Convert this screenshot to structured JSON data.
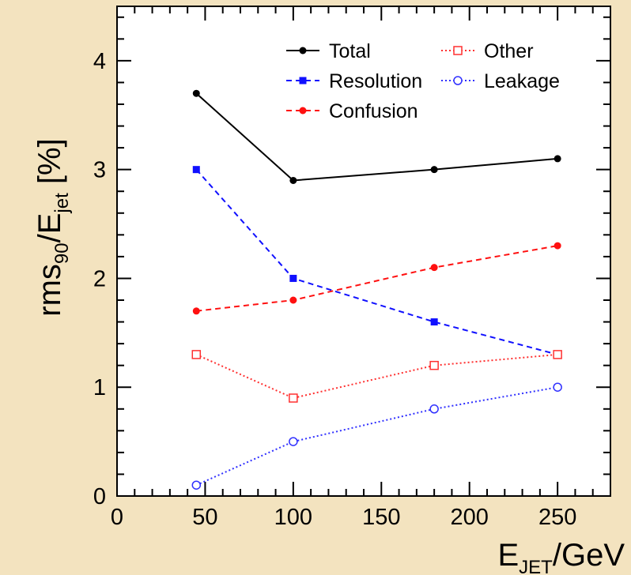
{
  "chart_data": {
    "type": "line",
    "xlabel": {
      "main": "E",
      "sub": "JET",
      "unit": "/GeV"
    },
    "ylabel": {
      "main": "rms",
      "sub1": "90",
      "mid": "/E",
      "sub2": "jet",
      "unit": "  [%]"
    },
    "xlim": [
      0,
      280
    ],
    "ylim": [
      0,
      4.5
    ],
    "xticks": [
      0,
      50,
      100,
      150,
      200,
      250
    ],
    "yticks": [
      0,
      1,
      2,
      3,
      4
    ],
    "xtick_labels": [
      "0",
      "50",
      "100",
      "150",
      "200",
      "250"
    ],
    "ytick_labels": [
      "0",
      "1",
      "2",
      "3",
      "4"
    ],
    "grid": false,
    "legend_position": "top-right",
    "x": [
      45,
      100,
      180,
      250
    ],
    "series": [
      {
        "name": "Total",
        "values": [
          3.7,
          2.9,
          3.0,
          3.1
        ],
        "color": "#000000",
        "marker": "filled-circle",
        "line": "solid"
      },
      {
        "name": "Resolution",
        "values": [
          3.0,
          2.0,
          1.6,
          1.3
        ],
        "color": "#1010ff",
        "marker": "filled-square",
        "line": "dashed"
      },
      {
        "name": "Confusion",
        "values": [
          1.7,
          1.8,
          2.1,
          2.3
        ],
        "color": "#ff1010",
        "marker": "filled-circle",
        "line": "dashed"
      },
      {
        "name": "Other",
        "values": [
          1.3,
          0.9,
          1.2,
          1.3
        ],
        "color": "#ff3030",
        "marker": "open-square",
        "line": "dotted"
      },
      {
        "name": "Leakage",
        "values": [
          0.1,
          0.5,
          0.8,
          1.0
        ],
        "color": "#3030ff",
        "marker": "open-circle",
        "line": "dotted"
      }
    ]
  }
}
